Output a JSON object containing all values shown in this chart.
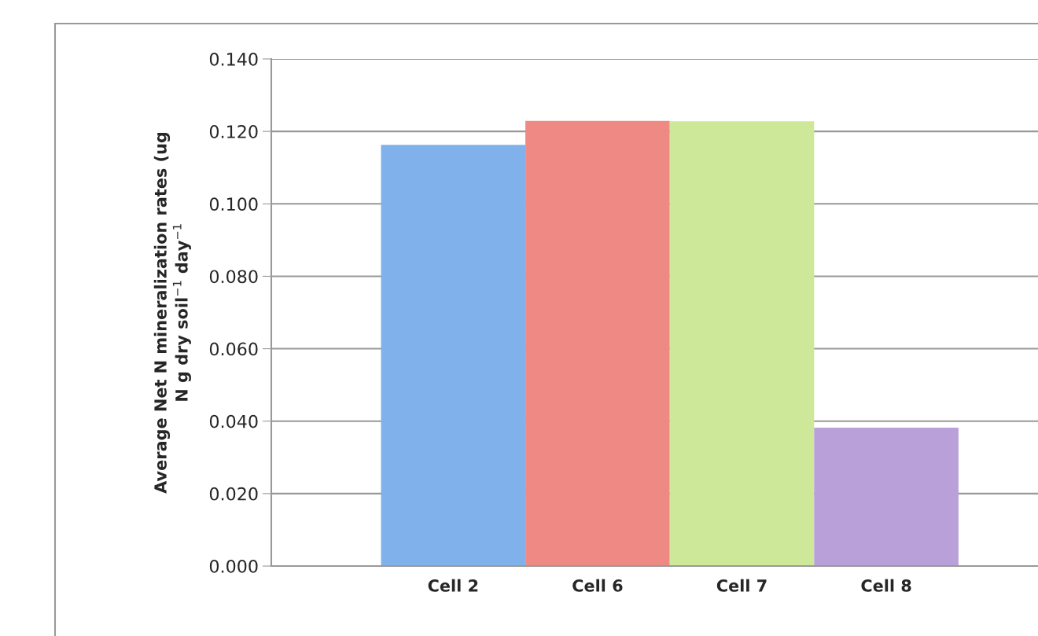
{
  "chart_data": {
    "type": "bar",
    "ylabel": "Average Net N mineralization rates (ug\nN g dry soil$^{−1}$ day$^{−1}$",
    "categories": [
      "Cell 2",
      "Cell 6",
      "Cell 7",
      "Cell 8"
    ],
    "values": [
      0.1163,
      0.1229,
      0.1228,
      0.0382
    ],
    "colors": [
      "#80b1ea",
      "#ee8983",
      "#cde898",
      "#b9a0d9"
    ],
    "ylim": [
      0,
      0.14
    ],
    "yticks": [
      {
        "value": 0,
        "label": "0.000"
      },
      {
        "value": 0.02,
        "label": "0.020"
      },
      {
        "value": 0.04,
        "label": "0.040"
      },
      {
        "value": 0.06,
        "label": "0.060"
      },
      {
        "value": 0.08,
        "label": "0.080"
      },
      {
        "value": 0.1,
        "label": "0.100"
      },
      {
        "value": 0.12,
        "label": "0.120"
      },
      {
        "value": 0.14,
        "label": "0.140"
      }
    ],
    "grid": "y"
  }
}
